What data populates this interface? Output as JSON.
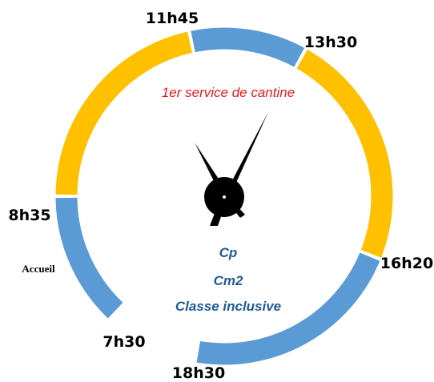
{
  "times": [
    "7h30",
    "8h35",
    "11h45",
    "13h30",
    "16h20",
    "18h30"
  ],
  "segments": [
    {
      "color": "#5b9bd5"
    },
    {
      "color": "#ffc000"
    },
    {
      "color": "#5b9bd5"
    },
    {
      "color": "#ffc000"
    },
    {
      "color": "#5b9bd5"
    }
  ],
  "labels": {
    "canteen": "1er service de cantine",
    "accueil": "Accueil",
    "classes": [
      "Cp",
      "Cm2",
      "Classe inclusive"
    ]
  }
}
